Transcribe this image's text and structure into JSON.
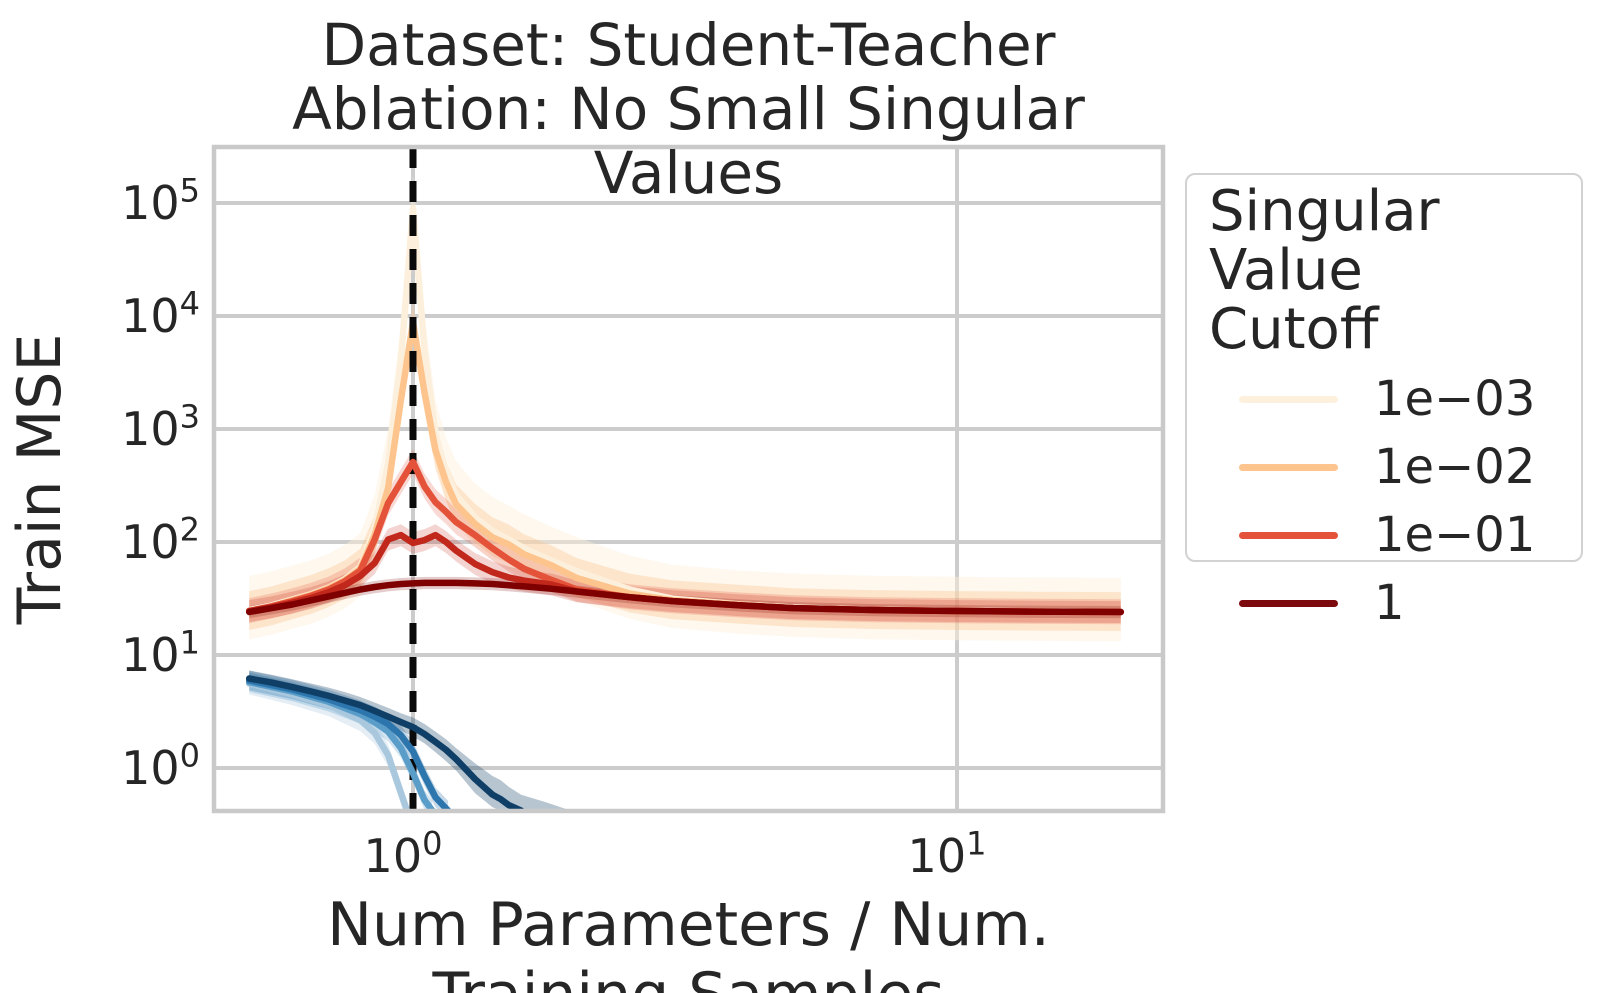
{
  "figure": {
    "title_line1": "Dataset: Student-Teacher",
    "title_line2": "Ablation: No Small Singular Values",
    "xlabel": "Num Parameters / Num. Training Samples",
    "ylabel": "Train MSE"
  },
  "legend": {
    "title": "Singular Value\nCutoff",
    "entries": [
      {
        "label": "1e−03",
        "color": "#fdf1de"
      },
      {
        "label": "1e−02",
        "color": "#fdc48d"
      },
      {
        "label": "1e−01",
        "color": "#e4523a"
      },
      {
        "label": "1",
        "color": "#7c0a0e"
      }
    ]
  },
  "chart_data": {
    "type": "line",
    "title": "Dataset: Student-Teacher\nAblation: No Small Singular Values",
    "xlabel": "Num Parameters / Num. Training Samples",
    "ylabel": "Train MSE",
    "x_scale": "log",
    "y_scale": "log",
    "xlim": [
      0.43,
      23.9
    ],
    "ylim": [
      0.416,
      313000
    ],
    "x_tick_exponents": [
      0,
      1
    ],
    "y_tick_exponents": [
      0,
      1,
      2,
      3,
      4,
      5
    ],
    "grid": true,
    "legend_title": "Singular Value Cutoff",
    "legend_position": "outside-right",
    "vline": {
      "x": 1.0,
      "style": "dashed",
      "color": "#0a0a0a",
      "width": 7,
      "dash": [
        21,
        13
      ]
    },
    "red_x": [
      0.5,
      0.55,
      0.6,
      0.65,
      0.7,
      0.75,
      0.8,
      0.85,
      0.9,
      0.95,
      1.0,
      1.05,
      1.1,
      1.15,
      1.2,
      1.3,
      1.4,
      1.5,
      1.6,
      1.8,
      2.0,
      2.5,
      3.0,
      4.0,
      5.0,
      7.0,
      10.0,
      14.0,
      20.0
    ],
    "series": [
      {
        "name": "cutoff-1e-03",
        "legend_label": "1e−03",
        "color": "#fcf0dc",
        "band_opacity": 0.45,
        "use_red_x": true,
        "y": [
          25,
          27.5,
          31,
          34.5,
          39.5,
          47,
          60,
          130,
          500,
          4000,
          90000,
          5000,
          900,
          420,
          260,
          165,
          125,
          105,
          88,
          68,
          55,
          38,
          31.5,
          28,
          26.3,
          25.1,
          24.6,
          24.3,
          24
        ],
        "band": {
          "lo_f": 0.55,
          "hi_f": 2.0
        }
      },
      {
        "name": "cutoff-1e-02",
        "legend_label": "1e−02",
        "color": "#fdc48d",
        "band_opacity": 0.35,
        "use_red_x": true,
        "y": [
          24.5,
          27,
          30.5,
          34,
          39,
          46,
          58,
          115,
          300,
          1800,
          8800,
          2100,
          650,
          340,
          215,
          145,
          110,
          95,
          78,
          62,
          48,
          35,
          30.5,
          27.8,
          26,
          25,
          24.5,
          24.2,
          24
        ],
        "band": {
          "lo_f": 0.68,
          "hi_f": 1.5
        }
      },
      {
        "name": "cutoff-1e-01",
        "legend_label": "1e−01",
        "color": "#e4523a",
        "band_opacity": 0.22,
        "use_red_x": true,
        "y": [
          24.5,
          27,
          30,
          33.5,
          38,
          45,
          56,
          105,
          220,
          340,
          510,
          310,
          225,
          185,
          150,
          115,
          88,
          70,
          58,
          46,
          38,
          32.5,
          30,
          27.5,
          26,
          25,
          24.5,
          24.2,
          24
        ],
        "band": {
          "lo_f": 0.78,
          "hi_f": 1.3
        }
      },
      {
        "name": "unlabeled-intermediate-red",
        "legend_label": null,
        "color": "#c1271b",
        "band_opacity": 0.2,
        "use_red_x": true,
        "y": [
          24.5,
          26.5,
          29,
          32,
          36,
          41.5,
          50,
          65,
          105,
          115,
          98,
          104,
          115,
          100,
          84,
          64,
          54,
          48.5,
          45.5,
          42,
          36.5,
          32.5,
          30,
          27.5,
          26,
          25,
          24.5,
          24.2,
          24
        ],
        "band": {
          "lo_f": 0.8,
          "hi_f": 1.25
        }
      },
      {
        "name": "cutoff-1",
        "legend_label": "1",
        "color": "#7f0000",
        "band_opacity": 0.2,
        "use_red_x": true,
        "y": [
          24,
          26,
          28,
          30.5,
          33,
          35.5,
          38,
          40,
          41.5,
          42.5,
          43,
          43.5,
          43.5,
          43.5,
          43.5,
          43,
          42.5,
          41.5,
          40.5,
          38.5,
          36.5,
          32.5,
          30,
          27.5,
          26,
          25,
          24.5,
          24.2,
          24
        ],
        "band": {
          "lo_f": 0.88,
          "hi_f": 1.13
        }
      },
      {
        "name": "blue-lightest",
        "legend_label": null,
        "color": "#a9c8de",
        "band_opacity": 0.3,
        "x": [
          0.5,
          0.6,
          0.7,
          0.8,
          0.85,
          0.9,
          0.94,
          0.975
        ],
        "y": [
          5.6,
          4.5,
          3.6,
          2.65,
          2.05,
          1.3,
          0.7,
          0.42
        ],
        "band": {
          "lo_f": 0.8,
          "hi_f": 1.25
        }
      },
      {
        "name": "blue-light",
        "legend_label": null,
        "color": "#5b9dc9",
        "band_opacity": 0.28,
        "x": [
          0.5,
          0.6,
          0.7,
          0.8,
          0.85,
          0.9,
          0.95,
          1.0,
          1.05,
          1.085
        ],
        "y": [
          5.75,
          4.75,
          3.85,
          3.0,
          2.55,
          2.1,
          1.5,
          0.9,
          0.52,
          0.42
        ],
        "band": {
          "lo_f": 0.82,
          "hi_f": 1.22
        }
      },
      {
        "name": "blue-medium",
        "legend_label": null,
        "color": "#2d76ad",
        "band_opacity": 0.28,
        "x": [
          0.5,
          0.6,
          0.7,
          0.8,
          0.85,
          0.9,
          0.95,
          1.0,
          1.05,
          1.1,
          1.16
        ],
        "y": [
          5.95,
          4.95,
          4.05,
          3.25,
          2.85,
          2.45,
          1.95,
          1.4,
          0.85,
          0.55,
          0.42
        ],
        "band": {
          "lo_f": 0.82,
          "hi_f": 1.22
        }
      },
      {
        "name": "blue-darkest",
        "legend_label": null,
        "color": "#0f3f66",
        "band_opacity": 0.3,
        "x": [
          0.5,
          0.55,
          0.6,
          0.65,
          0.7,
          0.75,
          0.8,
          0.85,
          0.9,
          0.95,
          1.0,
          1.05,
          1.1,
          1.15,
          1.2,
          1.3,
          1.4,
          1.45,
          1.5,
          1.58
        ],
        "y": [
          6.2,
          5.7,
          5.2,
          4.75,
          4.35,
          3.95,
          3.6,
          3.2,
          2.85,
          2.55,
          2.3,
          2.0,
          1.7,
          1.45,
          1.2,
          0.8,
          0.58,
          0.53,
          0.47,
          0.42
        ],
        "band": {
          "x": [
            0.5,
            0.55,
            0.6,
            0.65,
            0.7,
            0.75,
            0.8,
            0.85,
            0.9,
            0.95,
            1.0,
            1.05,
            1.1,
            1.15,
            1.2,
            1.3,
            1.4,
            1.45,
            1.5,
            1.58,
            1.75,
            1.95
          ],
          "lo": [
            5.3,
            4.9,
            4.45,
            4.05,
            3.7,
            3.35,
            3.05,
            2.7,
            2.4,
            2.15,
            1.9,
            1.65,
            1.38,
            1.15,
            0.95,
            0.6,
            0.45,
            0.42,
            0.41,
            0.4,
            0.4,
            0.4
          ],
          "hi": [
            7.3,
            6.7,
            6.1,
            5.6,
            5.15,
            4.7,
            4.25,
            3.8,
            3.4,
            3.05,
            2.8,
            2.45,
            2.1,
            1.8,
            1.5,
            1.1,
            0.85,
            0.78,
            0.68,
            0.58,
            0.5,
            0.42
          ]
        }
      }
    ]
  },
  "style_colors": {
    "grid": "#cccccc",
    "frame": "#c9c9c9",
    "text": "#262626"
  }
}
